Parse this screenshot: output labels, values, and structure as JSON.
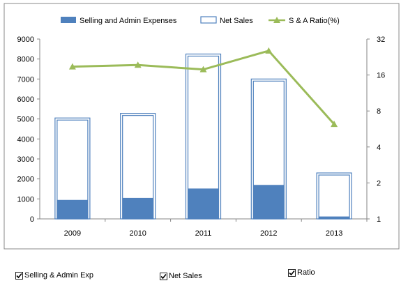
{
  "chart_data": {
    "type": "bar",
    "categories": [
      "2009",
      "2010",
      "2011",
      "2012",
      "2013"
    ],
    "series": [
      {
        "name": "Selling and Admin Expenses",
        "kind": "bar",
        "axis": "left",
        "color": "#4f81bd",
        "values": [
          950,
          1050,
          1520,
          1700,
          120
        ]
      },
      {
        "name": "Net Sales",
        "kind": "bar-outline",
        "axis": "left",
        "color": "#4f81bd",
        "values": [
          5050,
          5280,
          8250,
          7000,
          2300
        ]
      },
      {
        "name": "S & A Ratio(%)",
        "kind": "line",
        "axis": "right",
        "color": "#9bbb59",
        "values": [
          18.8,
          19.4,
          17.8,
          25.5,
          6.2
        ]
      }
    ],
    "y_left": {
      "min": 0,
      "max": 9000,
      "ticks": [
        "0",
        "1000",
        "2000",
        "3000",
        "4000",
        "5000",
        "6000",
        "7000",
        "8000",
        "9000"
      ]
    },
    "y_right": {
      "scale": "log2",
      "min": 1,
      "max": 32,
      "ticks": [
        "1",
        "2",
        "4",
        "8",
        "16",
        "32"
      ]
    },
    "legend_position": "top",
    "grid": false
  },
  "checkboxes": [
    {
      "label": "Selling & Admin Exp",
      "checked": true
    },
    {
      "label": "Net Sales",
      "checked": true
    },
    {
      "label": "Ratio",
      "checked": true
    }
  ]
}
